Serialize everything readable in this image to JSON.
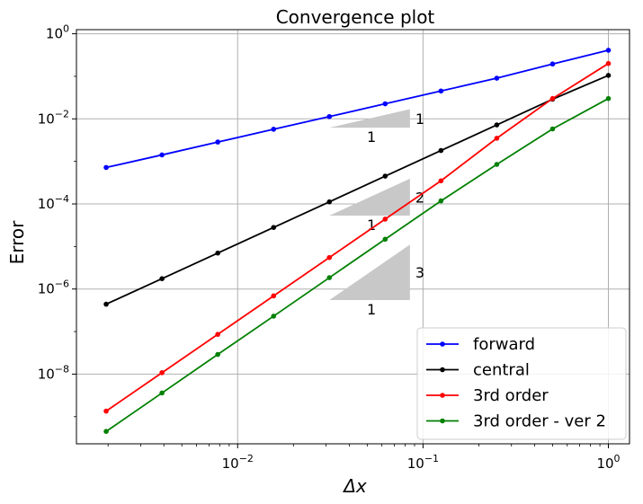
{
  "chart_data": {
    "type": "line",
    "title": "Convergence plot",
    "xlabel": "Δx",
    "ylabel": "Error",
    "xscale": "log",
    "yscale": "log",
    "xlim": [
      0.00135,
      1.3
    ],
    "ylim": [
      2.3e-10,
      1.25
    ],
    "grid": true,
    "legend_position": "bottom-right",
    "x": [
      0.001953125,
      0.00390625,
      0.0078125,
      0.015625,
      0.03125,
      0.0625,
      0.125,
      0.25,
      0.5,
      1.0
    ],
    "series": [
      {
        "name": "forward",
        "color": "#0000ff",
        "values": [
          0.00072,
          0.00142,
          0.00285,
          0.0057,
          0.0113,
          0.0226,
          0.0452,
          0.0904,
          0.195,
          0.41
        ]
      },
      {
        "name": "central",
        "color": "#000000",
        "values": [
          4.4e-07,
          1.75e-06,
          7e-06,
          2.8e-05,
          0.000112,
          0.00045,
          0.0018,
          0.0072,
          0.029,
          0.105
        ]
      },
      {
        "name": "3rd order",
        "color": "#ff0000",
        "values": [
          1.35e-09,
          1.08e-08,
          8.6e-08,
          6.9e-07,
          5.5e-06,
          4.4e-05,
          0.00035,
          0.0035,
          0.03,
          0.2
        ]
      },
      {
        "name": "3rd order - ver 2",
        "color": "#008000",
        "values": [
          4.5e-10,
          3.6e-09,
          2.9e-08,
          2.3e-07,
          1.85e-06,
          1.48e-05,
          0.000118,
          0.00085,
          0.0058,
          0.03
        ]
      }
    ],
    "x_ticks": [
      {
        "value": 0.01,
        "mantissa": "10",
        "exponent": "−2"
      },
      {
        "value": 0.1,
        "mantissa": "10",
        "exponent": "−1"
      },
      {
        "value": 1,
        "mantissa": "10",
        "exponent": "0"
      }
    ],
    "y_ticks": [
      {
        "value": 1,
        "mantissa": "10",
        "exponent": "0"
      },
      {
        "value": 0.01,
        "mantissa": "10",
        "exponent": "−2"
      },
      {
        "value": 0.0001,
        "mantissa": "10",
        "exponent": "−4"
      },
      {
        "value": 1e-06,
        "mantissa": "10",
        "exponent": "−6"
      },
      {
        "value": 1e-08,
        "mantissa": "10",
        "exponent": "−8"
      }
    ],
    "slope_triangles": [
      {
        "x0": 0.03125,
        "x1": 0.085,
        "y_base": 0.0062,
        "slope": 1,
        "run_label": "1",
        "rise_label": "1"
      },
      {
        "x0": 0.03125,
        "x1": 0.085,
        "y_base": 5.3e-05,
        "slope": 2,
        "run_label": "1",
        "rise_label": "2"
      },
      {
        "x0": 0.03125,
        "x1": 0.085,
        "y_base": 5.5e-07,
        "slope": 3,
        "run_label": "1",
        "rise_label": "3"
      }
    ],
    "triangle_color": "#c8c8c8",
    "grid_color": "#b0b0b0"
  }
}
